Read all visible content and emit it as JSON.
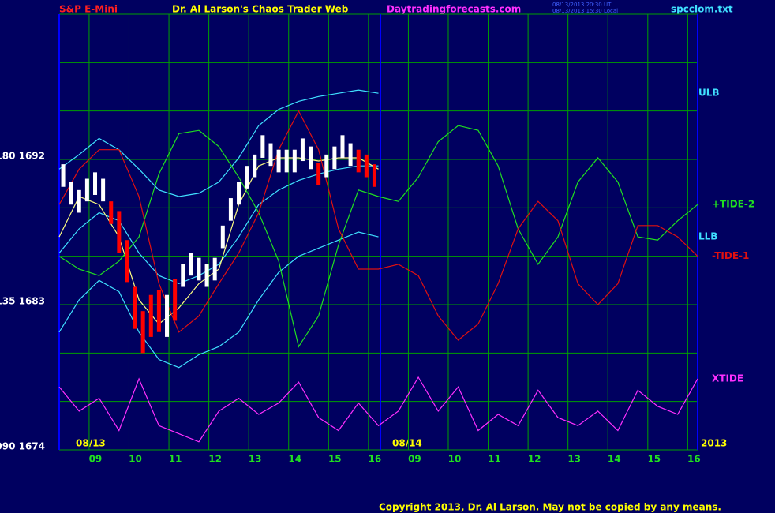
{
  "chart_data": {
    "type": "line",
    "title": "S&P E-Mini",
    "subtitle": "Dr. Al Larson's Chaos Trader Web",
    "site": "Daytradingforecasts.com",
    "timestamps": [
      "08/13/2013 20:30 UT",
      "08/13/2013 15:30 Local"
    ],
    "file": "spcclom.txt",
    "copyright": "Copyright 2013, Dr. Al Larson. May not be copied by any means.",
    "date_labels": [
      "08/13",
      "08/14",
      "2013"
    ],
    "xlim": [
      0,
      16
    ],
    "ylim": [
      1674,
      1701
    ],
    "xticks": [
      {
        "value": 0.75,
        "label": "09"
      },
      {
        "value": 1.75,
        "label": "10"
      },
      {
        "value": 2.75,
        "label": "11"
      },
      {
        "value": 3.75,
        "label": "12"
      },
      {
        "value": 4.75,
        "label": "13"
      },
      {
        "value": 5.75,
        "label": "14"
      },
      {
        "value": 6.75,
        "label": "15"
      },
      {
        "value": 7.75,
        "label": "16"
      },
      {
        "value": 8.75,
        "label": "09"
      },
      {
        "value": 9.75,
        "label": "10"
      },
      {
        "value": 10.75,
        "label": "11"
      },
      {
        "value": 11.75,
        "label": "12"
      },
      {
        "value": 12.75,
        "label": "13"
      },
      {
        "value": 13.75,
        "label": "14"
      },
      {
        "value": 14.75,
        "label": "15"
      },
      {
        "value": 15.75,
        "label": "16"
      }
    ],
    "yticks": [
      {
        "value": 1692,
        "label": "180 1692"
      },
      {
        "value": 1683,
        "label": "135 1683"
      },
      {
        "value": 1674,
        "label": "090 1674"
      }
    ],
    "ygrid": [
      1674,
      1677,
      1680,
      1683,
      1686,
      1689,
      1692,
      1695,
      1698,
      1701
    ],
    "grid": true,
    "grid_color": "#00a000",
    "divider_x": 8.05,
    "bars": {
      "x": [
        0.1,
        0.3,
        0.5,
        0.7,
        0.9,
        1.1,
        1.3,
        1.5,
        1.7,
        1.9,
        2.1,
        2.3,
        2.5,
        2.7,
        2.9,
        3.1,
        3.3,
        3.5,
        3.7,
        3.9,
        4.1,
        4.3,
        4.5,
        4.7,
        4.9,
        5.1,
        5.3,
        5.5,
        5.7,
        5.9,
        6.1,
        6.3,
        6.5,
        6.7,
        6.9,
        7.1,
        7.3,
        7.5,
        7.7,
        7.9
      ],
      "high": [
        1691.7,
        1690.6,
        1690.1,
        1690.8,
        1691.2,
        1690.8,
        1689.4,
        1688.8,
        1687.0,
        1684.1,
        1682.6,
        1683.6,
        1683.9,
        1683.6,
        1684.6,
        1685.5,
        1686.2,
        1685.9,
        1685.5,
        1685.9,
        1687.9,
        1689.6,
        1690.6,
        1691.6,
        1692.3,
        1693.5,
        1693.0,
        1692.6,
        1692.6,
        1692.6,
        1693.3,
        1692.8,
        1691.8,
        1692.3,
        1692.8,
        1693.5,
        1693.0,
        1692.6,
        1692.3,
        1691.7
      ],
      "low": [
        1690.3,
        1689.2,
        1688.7,
        1689.4,
        1689.8,
        1689.4,
        1688.0,
        1686.2,
        1684.4,
        1681.5,
        1680.0,
        1681.0,
        1681.3,
        1681.0,
        1682.0,
        1684.1,
        1684.8,
        1684.5,
        1684.1,
        1684.5,
        1686.5,
        1688.2,
        1689.2,
        1690.2,
        1690.9,
        1692.1,
        1691.6,
        1691.2,
        1691.2,
        1691.2,
        1691.9,
        1691.4,
        1690.4,
        1690.9,
        1691.4,
        1692.1,
        1691.6,
        1691.2,
        1690.9,
        1690.3
      ],
      "colors": [
        "#ffffff",
        "#ffffff",
        "#ffffff",
        "#ffffff",
        "#ffffff",
        "#ffffff",
        "#ff0000",
        "#ff0000",
        "#ff0000",
        "#ff0000",
        "#ff0000",
        "#ff0000",
        "#ff0000",
        "#ffffff",
        "#ff0000",
        "#ffffff",
        "#ffffff",
        "#ffffff",
        "#ffffff",
        "#ffffff",
        "#ffffff",
        "#ffffff",
        "#ffffff",
        "#ffffff",
        "#ffffff",
        "#ffffff",
        "#ffffff",
        "#ffffff",
        "#ffffff",
        "#ffffff",
        "#ffffff",
        "#ffffff",
        "#ff0000",
        "#ffffff",
        "#ffffff",
        "#ffffff",
        "#ffffff",
        "#ff0000",
        "#ff0000",
        "#ff0000"
      ]
    },
    "x": [
      0,
      0.5,
      1,
      1.5,
      2,
      2.5,
      3,
      3.5,
      4,
      4.5,
      5,
      5.5,
      6,
      6.5,
      7,
      7.5,
      8,
      8.5,
      9,
      9.5,
      10,
      10.5,
      11,
      11.5,
      12,
      12.5,
      13,
      13.5,
      14,
      14.5,
      15,
      15.5,
      16
    ],
    "series": [
      {
        "name": "ULB",
        "color": "#40e0ff",
        "values": [
          1691.4,
          1692.3,
          1693.3,
          1692.6,
          1691.4,
          1690.1,
          1689.7,
          1689.9,
          1690.6,
          1692.1,
          1694.1,
          1695.1,
          1695.6,
          1695.9,
          1696.1,
          1696.3,
          1696.1,
          null,
          null,
          null,
          null,
          null,
          null,
          null,
          null,
          null,
          null,
          null,
          null,
          null,
          null,
          null,
          null
        ]
      },
      {
        "color": "#40e0ff",
        "values": [
          1686.2,
          1687.7,
          1688.7,
          1688.2,
          1686.2,
          1684.8,
          1684.3,
          1684.8,
          1685.5,
          1687.2,
          1689.2,
          1690.1,
          1690.7,
          1691.1,
          1691.4,
          1691.6,
          1691.6,
          null,
          null,
          null,
          null,
          null,
          null,
          null,
          null,
          null,
          null,
          null,
          null,
          null,
          null,
          null,
          null
        ]
      },
      {
        "name": "LLB",
        "color": "#40e0ff",
        "values": [
          1681.3,
          1683.3,
          1684.5,
          1683.8,
          1681.3,
          1679.6,
          1679.1,
          1679.9,
          1680.4,
          1681.3,
          1683.3,
          1685.0,
          1686.0,
          1686.5,
          1687.0,
          1687.5,
          1687.2,
          null,
          null,
          null,
          null,
          null,
          null,
          null,
          null,
          null,
          null,
          null,
          null,
          null,
          null,
          null,
          null
        ]
      },
      {
        "color": "#ffff80",
        "values": [
          1687.2,
          1689.7,
          1689.2,
          1687.2,
          1683.3,
          1681.8,
          1682.8,
          1684.3,
          1685.2,
          1689.2,
          1691.6,
          1692.1,
          1692.1,
          1691.9,
          1692.1,
          1692.1,
          1691.4,
          null,
          null,
          null,
          null,
          null,
          null,
          null,
          null,
          null,
          null,
          null,
          null,
          null,
          null,
          null,
          null
        ]
      },
      {
        "name": "+TIDE-2",
        "color": "#20e020",
        "values": [
          1686.0,
          1685.2,
          1684.8,
          1685.7,
          1687.2,
          1691.1,
          1693.6,
          1693.8,
          1692.8,
          1690.9,
          1688.7,
          1685.7,
          1680.4,
          1682.3,
          1686.7,
          1690.1,
          1689.7,
          1689.4,
          1690.9,
          1693.1,
          1694.1,
          1693.8,
          1691.6,
          1687.7,
          1685.5,
          1687.2,
          1690.6,
          1692.1,
          1690.6,
          1687.2,
          1687.0,
          1688.2,
          1689.2
        ]
      },
      {
        "name": "-TIDE-1",
        "color": "#e01010",
        "values": [
          1689.2,
          1691.4,
          1692.6,
          1692.6,
          1689.7,
          1684.3,
          1681.3,
          1682.3,
          1684.3,
          1686.2,
          1688.7,
          1692.6,
          1695.0,
          1692.6,
          1687.7,
          1685.2,
          1685.2,
          1685.5,
          1684.8,
          1682.3,
          1680.8,
          1681.8,
          1684.3,
          1687.7,
          1689.4,
          1688.2,
          1684.3,
          1683.0,
          1684.3,
          1687.9,
          1687.9,
          1687.2,
          1686.0
        ]
      },
      {
        "name": "XTIDE",
        "color": "#ff30ff",
        "values": [
          1677.9,
          1676.4,
          1677.2,
          1675.2,
          1678.4,
          1675.5,
          1675.0,
          1674.5,
          1676.4,
          1677.2,
          1676.2,
          1676.9,
          1678.2,
          1676.0,
          1675.2,
          1676.9,
          1675.5,
          1676.4,
          1678.5,
          1676.4,
          1677.9,
          1675.2,
          1676.2,
          1675.5,
          1677.7,
          1676.0,
          1675.5,
          1676.4,
          1675.2,
          1677.7,
          1676.7,
          1676.2,
          1678.4
        ]
      }
    ]
  }
}
